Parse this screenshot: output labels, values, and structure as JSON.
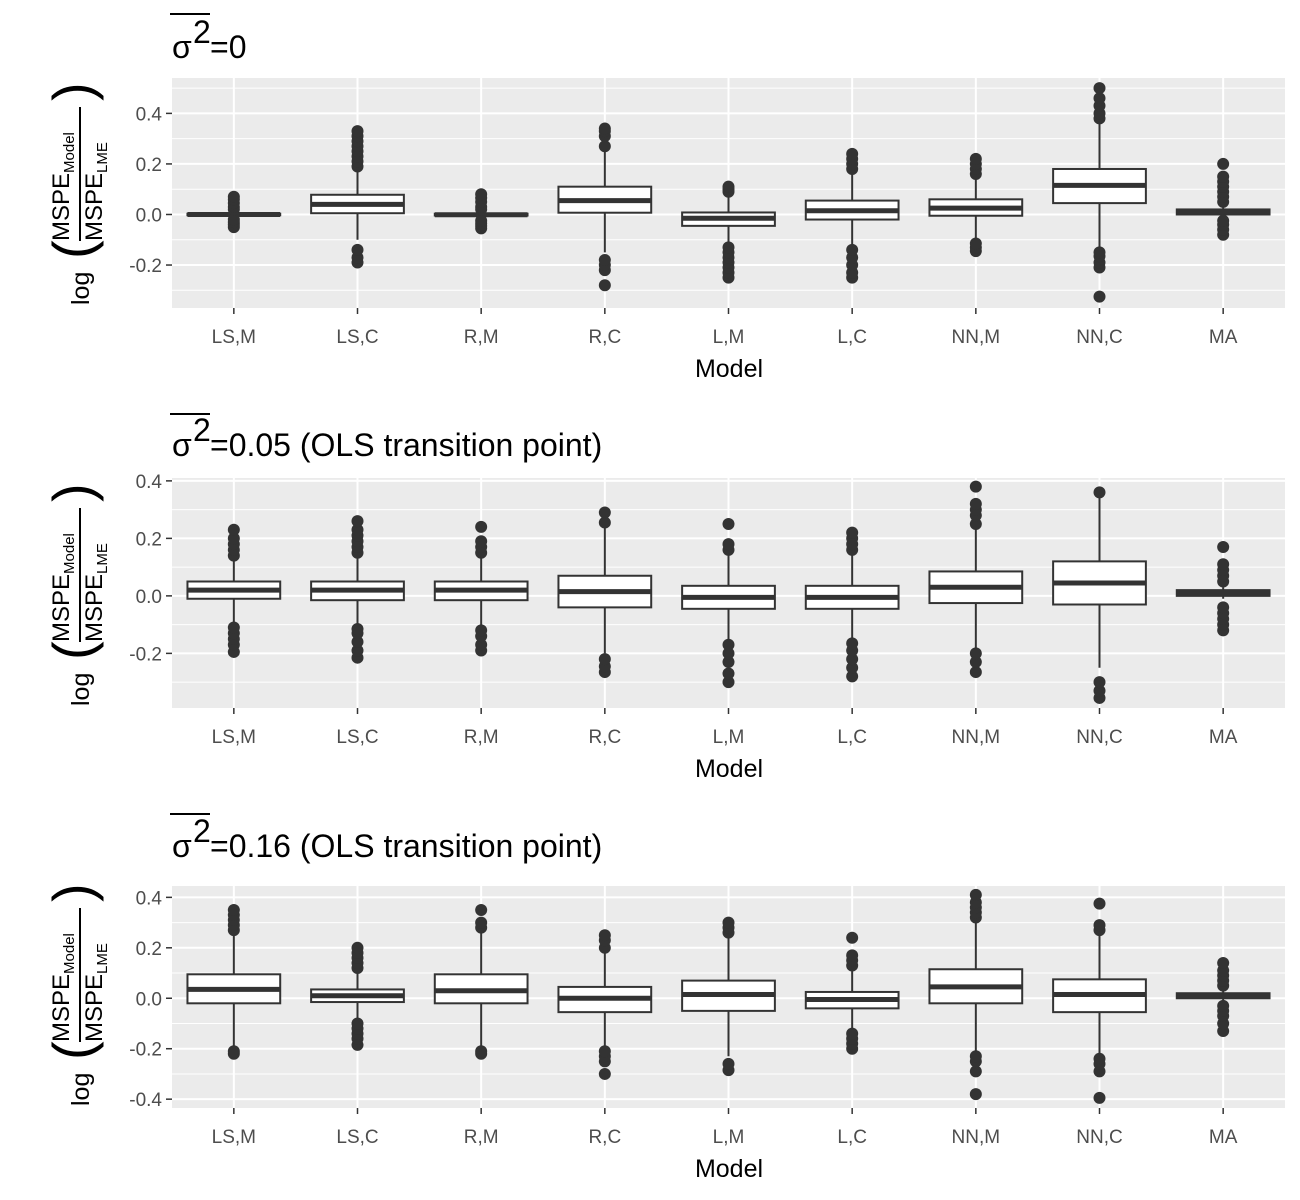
{
  "chart_data": [
    {
      "type": "box",
      "title_symbol": "σ",
      "title_superscript": "2",
      "title_rest": "=0",
      "xlabel": "Model",
      "ylabel": {
        "prefix": "log",
        "numerator": "MSPE",
        "numerator_sub": "Model",
        "denominator": "MSPE",
        "denominator_sub": "LME"
      },
      "ylim": [
        -0.37,
        0.54
      ],
      "yticks": [
        -0.2,
        0.0,
        0.2,
        0.4
      ],
      "ytick_labels": [
        "-0.2",
        "0.0",
        "0.2",
        "0.4"
      ],
      "categories": [
        "LS,M",
        "LS,C",
        "R,M",
        "R,C",
        "L,M",
        "L,C",
        "NN,M",
        "NN,C",
        "MA"
      ],
      "boxes": [
        {
          "q1": -0.003,
          "median": 0.0,
          "q3": 0.003,
          "whisker_low": -0.01,
          "whisker_high": 0.01,
          "outliers": [
            -0.05,
            -0.04,
            -0.03,
            -0.02,
            0.02,
            0.03,
            0.045,
            0.06,
            0.07
          ]
        },
        {
          "q1": 0.005,
          "median": 0.04,
          "q3": 0.078,
          "whisker_low": -0.1,
          "whisker_high": 0.185,
          "outliers": [
            -0.19,
            -0.17,
            -0.14,
            0.19,
            0.21,
            0.23,
            0.25,
            0.27,
            0.29,
            0.31,
            0.33
          ]
        },
        {
          "q1": -0.004,
          "median": -0.001,
          "q3": 0.003,
          "whisker_low": -0.012,
          "whisker_high": 0.012,
          "outliers": [
            -0.055,
            -0.045,
            -0.035,
            -0.025,
            0.02,
            0.03,
            0.05,
            0.065,
            0.08
          ]
        },
        {
          "q1": 0.007,
          "median": 0.055,
          "q3": 0.11,
          "whisker_low": -0.15,
          "whisker_high": 0.265,
          "outliers": [
            -0.28,
            -0.22,
            -0.2,
            -0.18,
            0.27,
            0.31,
            0.33,
            0.34
          ]
        },
        {
          "q1": -0.045,
          "median": -0.015,
          "q3": 0.008,
          "whisker_low": -0.115,
          "whisker_high": 0.085,
          "outliers": [
            -0.25,
            -0.23,
            -0.21,
            -0.19,
            -0.17,
            -0.15,
            -0.13,
            0.09,
            0.1,
            0.11
          ]
        },
        {
          "q1": -0.02,
          "median": 0.015,
          "q3": 0.055,
          "whisker_low": -0.13,
          "whisker_high": 0.17,
          "outliers": [
            -0.25,
            -0.23,
            -0.2,
            -0.17,
            -0.14,
            0.18,
            0.2,
            0.22,
            0.24
          ]
        },
        {
          "q1": -0.005,
          "median": 0.025,
          "q3": 0.06,
          "whisker_low": -0.095,
          "whisker_high": 0.155,
          "outliers": [
            -0.145,
            -0.13,
            -0.115,
            0.16,
            0.18,
            0.2,
            0.22
          ]
        },
        {
          "q1": 0.045,
          "median": 0.115,
          "q3": 0.18,
          "whisker_low": -0.15,
          "whisker_high": 0.37,
          "outliers": [
            -0.325,
            -0.21,
            -0.19,
            -0.165,
            -0.15,
            0.38,
            0.4,
            0.43,
            0.46,
            0.5
          ]
        },
        {
          "q1": 0.0,
          "median": 0.01,
          "q3": 0.02,
          "whisker_low": -0.01,
          "whisker_high": 0.035,
          "outliers": [
            -0.08,
            -0.06,
            -0.04,
            -0.025,
            0.05,
            0.07,
            0.09,
            0.11,
            0.13,
            0.15,
            0.2
          ]
        }
      ]
    },
    {
      "type": "box",
      "title_symbol": "σ",
      "title_superscript": "2",
      "title_rest": " =0.05 (OLS transition point)",
      "xlabel": "Model",
      "ylabel": {
        "prefix": "log",
        "numerator": "MSPE",
        "numerator_sub": "Model",
        "denominator": "MSPE",
        "denominator_sub": "LME"
      },
      "ylim": [
        -0.39,
        0.41
      ],
      "yticks": [
        -0.2,
        0.0,
        0.2,
        0.4
      ],
      "ytick_labels": [
        "-0.2",
        "0.0",
        "0.2",
        "0.4"
      ],
      "categories": [
        "LS,M",
        "LS,C",
        "R,M",
        "R,C",
        "L,M",
        "L,C",
        "NN,M",
        "NN,C",
        "MA"
      ],
      "boxes": [
        {
          "q1": -0.01,
          "median": 0.02,
          "q3": 0.05,
          "whisker_low": -0.095,
          "whisker_high": 0.135,
          "outliers": [
            -0.195,
            -0.17,
            -0.15,
            -0.13,
            -0.11,
            0.14,
            0.16,
            0.18,
            0.2,
            0.23
          ]
        },
        {
          "q1": -0.015,
          "median": 0.02,
          "q3": 0.05,
          "whisker_low": -0.11,
          "whisker_high": 0.14,
          "outliers": [
            -0.215,
            -0.19,
            -0.16,
            -0.13,
            -0.115,
            0.15,
            0.17,
            0.19,
            0.21,
            0.23,
            0.26
          ]
        },
        {
          "q1": -0.015,
          "median": 0.02,
          "q3": 0.05,
          "whisker_low": -0.1,
          "whisker_high": 0.14,
          "outliers": [
            -0.19,
            -0.17,
            -0.14,
            -0.12,
            0.15,
            0.17,
            0.19,
            0.24
          ]
        },
        {
          "q1": -0.04,
          "median": 0.015,
          "q3": 0.07,
          "whisker_low": -0.2,
          "whisker_high": 0.235,
          "outliers": [
            -0.265,
            -0.245,
            -0.22,
            0.255,
            0.29
          ]
        },
        {
          "q1": -0.045,
          "median": -0.005,
          "q3": 0.035,
          "whisker_low": -0.15,
          "whisker_high": 0.155,
          "outliers": [
            -0.3,
            -0.27,
            -0.23,
            -0.2,
            -0.17,
            0.16,
            0.18,
            0.25
          ]
        },
        {
          "q1": -0.045,
          "median": -0.005,
          "q3": 0.035,
          "whisker_low": -0.16,
          "whisker_high": 0.15,
          "outliers": [
            -0.28,
            -0.25,
            -0.22,
            -0.19,
            -0.165,
            0.16,
            0.18,
            0.2,
            0.22
          ]
        },
        {
          "q1": -0.025,
          "median": 0.03,
          "q3": 0.085,
          "whisker_low": -0.185,
          "whisker_high": 0.245,
          "outliers": [
            -0.265,
            -0.23,
            -0.2,
            0.25,
            0.28,
            0.3,
            0.32,
            0.38
          ]
        },
        {
          "q1": -0.03,
          "median": 0.045,
          "q3": 0.12,
          "whisker_low": -0.25,
          "whisker_high": 0.355,
          "outliers": [
            -0.355,
            -0.33,
            -0.3,
            0.36
          ]
        },
        {
          "q1": 0.0,
          "median": 0.01,
          "q3": 0.02,
          "whisker_low": -0.01,
          "whisker_high": 0.03,
          "outliers": [
            -0.12,
            -0.1,
            -0.08,
            -0.06,
            -0.04,
            0.05,
            0.07,
            0.09,
            0.11,
            0.17
          ]
        }
      ]
    },
    {
      "type": "box",
      "title_symbol": "σ",
      "title_superscript": "2",
      "title_rest": " =0.16 (OLS transition point)",
      "xlabel": "Model",
      "ylabel": {
        "prefix": "log",
        "numerator": "MSPE",
        "numerator_sub": "Model",
        "denominator": "MSPE",
        "denominator_sub": "LME"
      },
      "ylim": [
        -0.435,
        0.445
      ],
      "yticks": [
        -0.4,
        -0.2,
        0.0,
        0.2,
        0.4
      ],
      "ytick_labels": [
        "-0.4",
        "-0.2",
        "0.0",
        "0.2",
        "0.4"
      ],
      "categories": [
        "LS,M",
        "LS,C",
        "R,M",
        "R,C",
        "L,M",
        "L,C",
        "NN,M",
        "NN,C",
        "MA"
      ],
      "boxes": [
        {
          "q1": -0.02,
          "median": 0.035,
          "q3": 0.095,
          "whisker_low": -0.2,
          "whisker_high": 0.265,
          "outliers": [
            -0.22,
            -0.21,
            0.27,
            0.29,
            0.31,
            0.33,
            0.35
          ]
        },
        {
          "q1": -0.015,
          "median": 0.01,
          "q3": 0.035,
          "whisker_low": -0.09,
          "whisker_high": 0.11,
          "outliers": [
            -0.185,
            -0.16,
            -0.14,
            -0.12,
            -0.1,
            0.12,
            0.14,
            0.16,
            0.18,
            0.2
          ]
        },
        {
          "q1": -0.02,
          "median": 0.03,
          "q3": 0.095,
          "whisker_low": -0.2,
          "whisker_high": 0.265,
          "outliers": [
            -0.22,
            -0.21,
            0.28,
            0.3,
            0.35
          ]
        },
        {
          "q1": -0.055,
          "median": 0.0,
          "q3": 0.045,
          "whisker_low": -0.2,
          "whisker_high": 0.19,
          "outliers": [
            -0.3,
            -0.25,
            -0.23,
            -0.21,
            0.2,
            0.23,
            0.25
          ]
        },
        {
          "q1": -0.05,
          "median": 0.015,
          "q3": 0.07,
          "whisker_low": -0.23,
          "whisker_high": 0.25,
          "outliers": [
            -0.285,
            -0.26,
            0.26,
            0.28,
            0.3
          ]
        },
        {
          "q1": -0.04,
          "median": -0.005,
          "q3": 0.025,
          "whisker_low": -0.13,
          "whisker_high": 0.12,
          "outliers": [
            -0.2,
            -0.18,
            -0.16,
            -0.14,
            0.13,
            0.15,
            0.17,
            0.24
          ]
        },
        {
          "q1": -0.02,
          "median": 0.045,
          "q3": 0.115,
          "whisker_low": -0.215,
          "whisker_high": 0.315,
          "outliers": [
            -0.38,
            -0.29,
            -0.25,
            -0.23,
            0.32,
            0.34,
            0.36,
            0.38,
            0.41
          ]
        },
        {
          "q1": -0.055,
          "median": 0.015,
          "q3": 0.075,
          "whisker_low": -0.23,
          "whisker_high": 0.25,
          "outliers": [
            -0.395,
            -0.29,
            -0.26,
            -0.24,
            0.27,
            0.29,
            0.375
          ]
        },
        {
          "q1": 0.0,
          "median": 0.01,
          "q3": 0.02,
          "whisker_low": -0.01,
          "whisker_high": 0.03,
          "outliers": [
            -0.13,
            -0.1,
            -0.07,
            -0.05,
            -0.03,
            0.05,
            0.07,
            0.09,
            0.11,
            0.14
          ]
        }
      ]
    }
  ]
}
